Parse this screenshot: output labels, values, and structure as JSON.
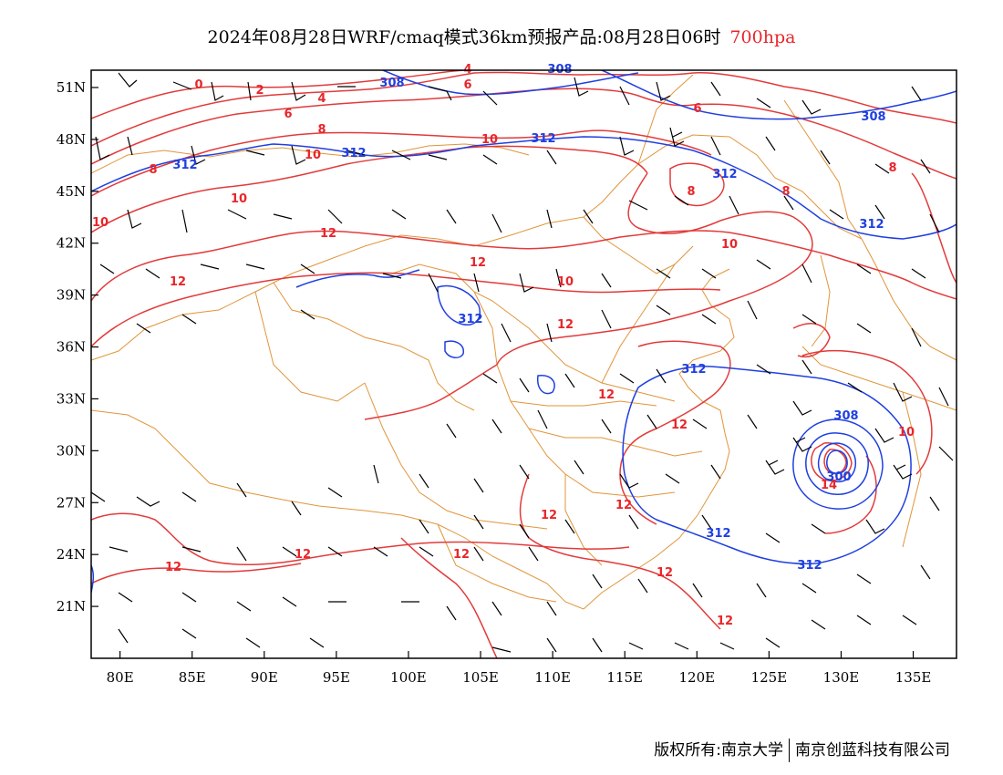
{
  "title": {
    "main": "2024年08月28日WRF/cmaq模式36km预报产品:08月28日06时",
    "level": "700hpa",
    "level_color": "#e8262b"
  },
  "map": {
    "lon_labels": [
      "80E",
      "85E",
      "90E",
      "95E",
      "100E",
      "105E",
      "110E",
      "115E",
      "120E",
      "125E",
      "130E",
      "135E"
    ],
    "lat_labels": [
      "51N",
      "48N",
      "45N",
      "42N",
      "39N",
      "36N",
      "33N",
      "30N",
      "27N",
      "24N",
      "21N"
    ],
    "extent": {
      "lon": [
        78,
        138
      ],
      "lat": [
        18,
        52
      ]
    }
  },
  "contours": {
    "temperature_color": "#e23a3a",
    "height_color": "#1f3fe0",
    "temperature_labels": [
      "0",
      "2",
      "4",
      "4",
      "6",
      "6",
      "6",
      "8",
      "8",
      "8",
      "8",
      "8",
      "10",
      "10",
      "10",
      "10",
      "10",
      "10",
      "10",
      "12",
      "12",
      "12",
      "12",
      "12",
      "12",
      "12",
      "12",
      "12",
      "12",
      "12",
      "12",
      "12",
      "14"
    ],
    "height_labels": [
      "308",
      "308",
      "308",
      "308",
      "312",
      "312",
      "312",
      "312",
      "312",
      "312",
      "312",
      "312",
      "300"
    ]
  },
  "footer": {
    "copyright_left": "版权所有:南京大学",
    "copyright_right": "南京创蓝科技有限公司"
  }
}
